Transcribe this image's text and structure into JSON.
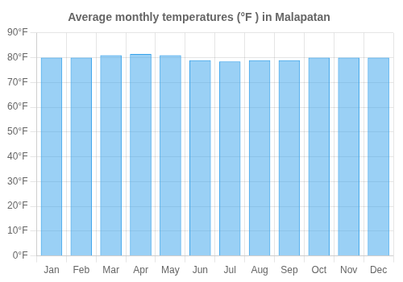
{
  "chart_data": {
    "type": "bar",
    "title": "Average monthly temperatures (°F ) in Malapatan",
    "categories": [
      "Jan",
      "Feb",
      "Mar",
      "Apr",
      "May",
      "Jun",
      "Jul",
      "Aug",
      "Sep",
      "Oct",
      "Nov",
      "Dec"
    ],
    "values": [
      80,
      80,
      81,
      81.5,
      81,
      79,
      78.5,
      79,
      79,
      80,
      80,
      80
    ],
    "ylim": [
      0,
      90
    ],
    "yticks": [
      {
        "value": 0,
        "label": "0°F"
      },
      {
        "value": 10,
        "label": "10°F"
      },
      {
        "value": 20,
        "label": "20°F"
      },
      {
        "value": 30,
        "label": "30°F"
      },
      {
        "value": 40,
        "label": "40°F"
      },
      {
        "value": 50,
        "label": "50°F"
      },
      {
        "value": 60,
        "label": "60°F"
      },
      {
        "value": 70,
        "label": "70°F"
      },
      {
        "value": 80,
        "label": "80°F"
      },
      {
        "value": 90,
        "label": "90°F"
      }
    ],
    "grid": true
  }
}
